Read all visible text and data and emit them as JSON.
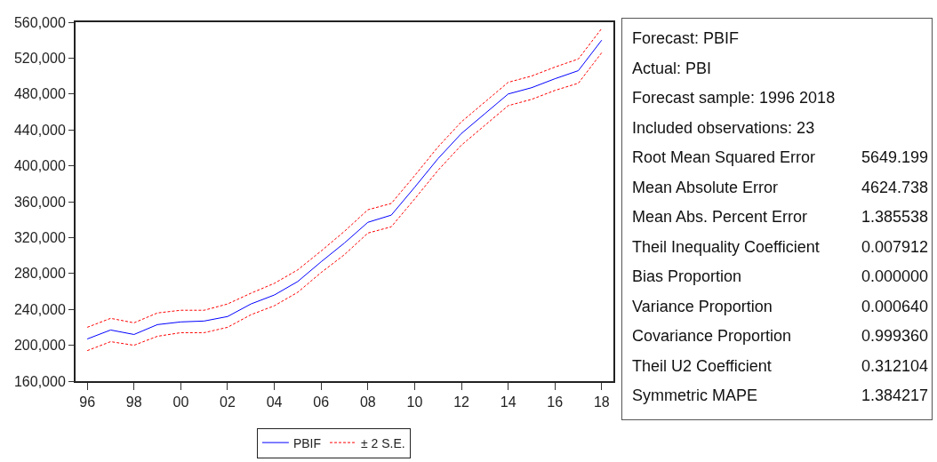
{
  "chart_data": [
    {
      "type": "line",
      "x": [
        1996,
        1997,
        1998,
        1999,
        2000,
        2001,
        2002,
        2003,
        2004,
        2005,
        2006,
        2007,
        2008,
        2009,
        2010,
        2011,
        2012,
        2013,
        2014,
        2015,
        2016,
        2017,
        2018
      ],
      "series": [
        {
          "name": "PBIF",
          "color": "#0000ff",
          "line_style": "solid",
          "values": [
            207000,
            217000,
            212000,
            223000,
            226000,
            227000,
            232000,
            246000,
            256000,
            271000,
            293000,
            314000,
            337000,
            345000,
            376000,
            408000,
            436000,
            458000,
            480000,
            487000,
            497000,
            506000,
            540000
          ]
        },
        {
          "name": "± 2 S.E.",
          "color": "#ff0000",
          "line_style": "dashed",
          "values": [
            220000,
            230000,
            225000,
            236000,
            239000,
            239000,
            246000,
            258000,
            269000,
            284000,
            305000,
            327000,
            351000,
            358000,
            389000,
            421000,
            449000,
            471000,
            493000,
            500000,
            510000,
            519000,
            553000
          ]
        },
        {
          "color": "#ff0000",
          "line_style": "dashed",
          "values": [
            194000,
            204000,
            200000,
            210000,
            214000,
            214000,
            220000,
            234000,
            244000,
            259000,
            281000,
            301000,
            325000,
            332000,
            363000,
            395000,
            423000,
            445000,
            467000,
            474000,
            484000,
            492000,
            526000
          ]
        }
      ],
      "xlim": [
        1995.5,
        2018.5
      ],
      "xticks": [
        {
          "value": 1996,
          "label": "96"
        },
        {
          "value": 1998,
          "label": "98"
        },
        {
          "value": 2000,
          "label": "00"
        },
        {
          "value": 2002,
          "label": "02"
        },
        {
          "value": 2004,
          "label": "04"
        },
        {
          "value": 2006,
          "label": "06"
        },
        {
          "value": 2008,
          "label": "08"
        },
        {
          "value": 2010,
          "label": "10"
        },
        {
          "value": 2012,
          "label": "12"
        },
        {
          "value": 2014,
          "label": "14"
        },
        {
          "value": 2016,
          "label": "16"
        },
        {
          "value": 2018,
          "label": "18"
        }
      ],
      "ylim": [
        160000,
        560000
      ],
      "yticks": [
        {
          "value": 160000,
          "label": "160,000"
        },
        {
          "value": 200000,
          "label": "200,000"
        },
        {
          "value": 240000,
          "label": "240,000"
        },
        {
          "value": 280000,
          "label": "280,000"
        },
        {
          "value": 320000,
          "label": "320,000"
        },
        {
          "value": 360000,
          "label": "360,000"
        },
        {
          "value": 400000,
          "label": "400,000"
        },
        {
          "value": 440000,
          "label": "440,000"
        },
        {
          "value": 480000,
          "label": "480,000"
        },
        {
          "value": 520000,
          "label": "520,000"
        },
        {
          "value": 560000,
          "label": "560,000"
        }
      ],
      "grid": false,
      "legend": "bottom",
      "marker": "none"
    },
    {
      "type": "other",
      "categories": [
        "Forecast: PBIF",
        "Actual: PBI",
        "Forecast sample: 1996 2018",
        "Included observations: 23",
        "Root Mean Squared Error",
        "Mean Absolute Error",
        "Mean Abs. Percent Error",
        "Theil Inequality Coefficient",
        "Bias Proportion",
        "Variance Proportion",
        "Covariance Proportion",
        "Theil U2 Coefficient",
        "Symmetric MAPE"
      ],
      "value_labels": [
        null,
        null,
        null,
        null,
        "5649.199",
        "4624.738",
        "1.385538",
        "0.007912",
        "0.000000",
        "0.000640",
        "0.999360",
        "0.312104",
        "1.384217"
      ]
    }
  ]
}
